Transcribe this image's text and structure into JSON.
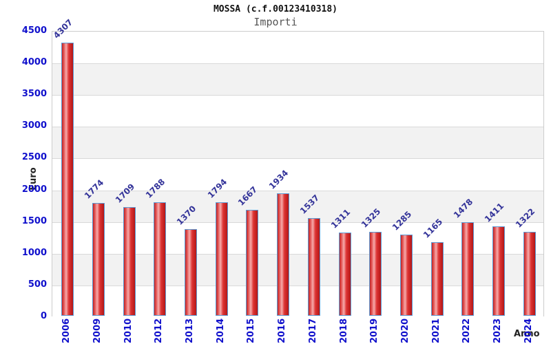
{
  "header": {
    "title": "MOSSA (c.f.00123410318)",
    "subtitle": "Importi"
  },
  "chart_data": {
    "type": "bar",
    "title": "MOSSA (c.f.00123410318)",
    "subtitle": "Importi",
    "xlabel": "Anno",
    "ylabel": "Euro",
    "categories": [
      "2006",
      "2009",
      "2010",
      "2012",
      "2013",
      "2014",
      "2015",
      "2016",
      "2017",
      "2018",
      "2019",
      "2020",
      "2021",
      "2022",
      "2023",
      "2024"
    ],
    "values": [
      4307,
      1774,
      1709,
      1788,
      1370,
      1794,
      1667,
      1934,
      1537,
      1311,
      1325,
      1285,
      1165,
      1478,
      1411,
      1322
    ],
    "ylim": [
      0,
      4500
    ],
    "y_ticks": [
      0,
      500,
      1000,
      1500,
      2000,
      2500,
      3000,
      3500,
      4000,
      4500
    ],
    "grid": true,
    "legend": "none",
    "colors": {
      "bar_fill_dark": "#c42222",
      "bar_fill_highlight": "#f6abab",
      "bar_border": "#5b9bd5",
      "value_label": "#333399",
      "axis_tick_label": "#1010cc",
      "band_alt": "#f2f2f2",
      "band_main": "#ffffff",
      "gridline": "#d9d9d9",
      "title_text": "#111111",
      "subtitle_text": "#555555"
    }
  }
}
